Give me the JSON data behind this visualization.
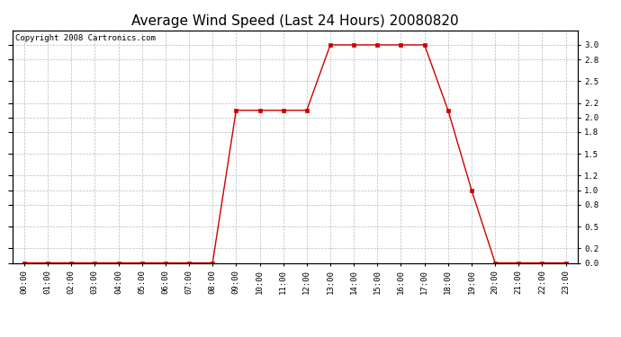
{
  "title": "Average Wind Speed (Last 24 Hours) 20080820",
  "copyright_text": "Copyright 2008 Cartronics.com",
  "hours": [
    0,
    1,
    2,
    3,
    4,
    5,
    6,
    7,
    8,
    9,
    10,
    11,
    12,
    13,
    14,
    15,
    16,
    17,
    18,
    19,
    20,
    21,
    22,
    23
  ],
  "values": [
    0.0,
    0.0,
    0.0,
    0.0,
    0.0,
    0.0,
    0.0,
    0.0,
    0.0,
    2.1,
    2.1,
    2.1,
    2.1,
    3.0,
    3.0,
    3.0,
    3.0,
    3.0,
    2.1,
    1.0,
    0.0,
    0.0,
    0.0,
    0.0
  ],
  "xlabels": [
    "00:00",
    "01:00",
    "02:00",
    "03:00",
    "04:00",
    "05:00",
    "06:00",
    "07:00",
    "08:00",
    "09:00",
    "10:00",
    "11:00",
    "12:00",
    "13:00",
    "14:00",
    "15:00",
    "16:00",
    "17:00",
    "18:00",
    "19:00",
    "20:00",
    "21:00",
    "22:00",
    "23:00"
  ],
  "ylim": [
    0.0,
    3.2
  ],
  "yticks": [
    0.0,
    0.2,
    0.5,
    0.8,
    1.0,
    1.2,
    1.5,
    1.8,
    2.0,
    2.2,
    2.5,
    2.8,
    3.0
  ],
  "line_color": "#cc0000",
  "marker": "s",
  "marker_size": 2.5,
  "bg_color": "#ffffff",
  "plot_bg_color": "#ffffff",
  "grid_color": "#bbbbbb",
  "title_fontsize": 11,
  "tick_fontsize": 6.5,
  "copyright_fontsize": 6.5
}
